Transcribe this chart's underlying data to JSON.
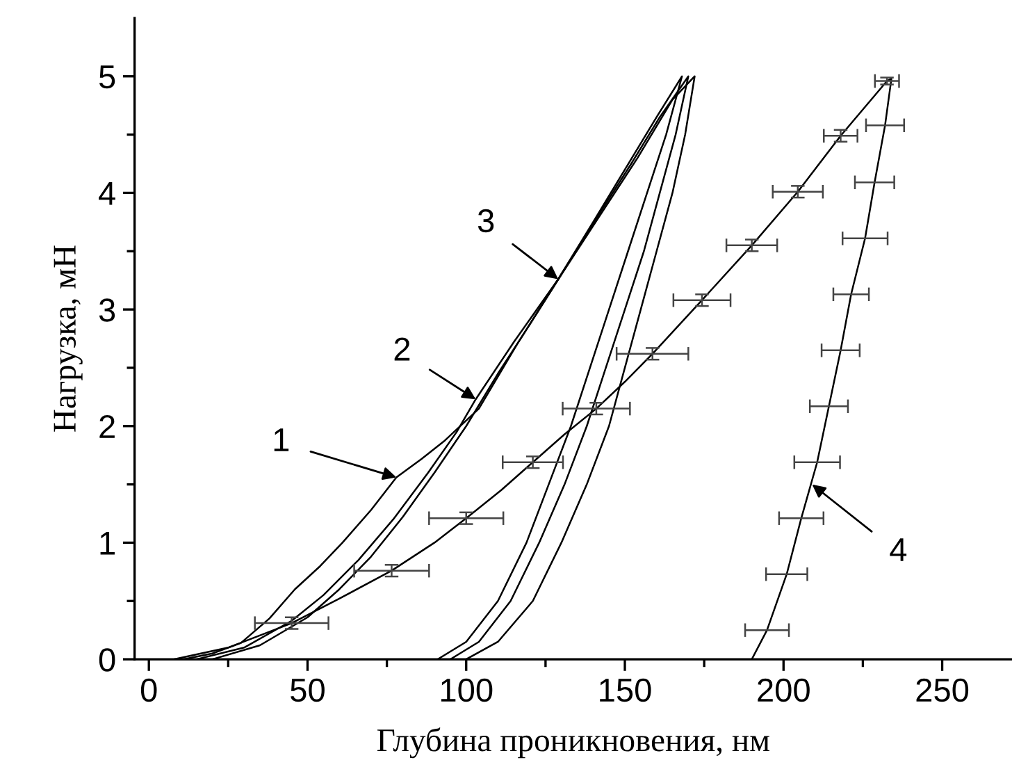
{
  "chart_data": {
    "type": "line",
    "xlabel": "Глубина проникновения, нм",
    "ylabel": "Нагрузка, мН",
    "xlim": [
      -4.5,
      272
    ],
    "xticks": [
      0,
      {
        "value": 25,
        "label": null
      },
      50,
      {
        "value": 75,
        "label": null
      },
      100,
      {
        "value": 125,
        "label": null
      },
      150,
      {
        "value": 175,
        "label": null
      },
      200,
      {
        "value": 225,
        "label": null
      },
      250
    ],
    "ylim": [
      0,
      5.5
    ],
    "yticks": [
      0,
      {
        "value": 0.5,
        "label": null
      },
      1,
      {
        "value": 1.5,
        "label": null
      },
      2,
      {
        "value": 2.5,
        "label": null
      },
      3,
      {
        "value": 3.5,
        "label": null
      },
      4,
      {
        "value": 4.5,
        "label": null
      },
      5
    ],
    "grid": false,
    "marker": "none",
    "line_style": "solid",
    "series": [
      {
        "color": "#000000",
        "x": [
          11,
          20,
          29,
          38,
          46,
          54,
          61,
          70,
          78,
          86,
          93,
          104,
          116,
          129,
          140,
          150,
          160,
          168,
          163,
          157,
          151,
          145,
          139,
          133,
          126,
          119,
          110,
          100,
          91
        ],
        "values": [
          0,
          0.05,
          0.14,
          0.35,
          0.6,
          0.8,
          1.0,
          1.28,
          1.56,
          1.72,
          1.87,
          2.15,
          2.7,
          3.26,
          3.75,
          4.2,
          4.65,
          5.0,
          4.5,
          4.0,
          3.5,
          3.0,
          2.5,
          2.0,
          1.5,
          1.0,
          0.5,
          0.15,
          0
        ]
      },
      {
        "color": "#000000",
        "x": [
          15,
          30,
          45,
          55,
          66,
          77,
          88,
          97,
          103,
          115,
          129,
          141,
          152,
          161,
          170,
          166,
          161,
          156,
          150,
          144,
          138,
          131,
          123,
          114,
          104,
          95
        ],
        "values": [
          0,
          0.1,
          0.33,
          0.55,
          0.85,
          1.2,
          1.6,
          1.95,
          2.23,
          2.72,
          3.26,
          3.78,
          4.25,
          4.65,
          5.0,
          4.5,
          4.0,
          3.5,
          3.0,
          2.5,
          2.0,
          1.5,
          1.0,
          0.5,
          0.15,
          0
        ]
      },
      {
        "color": "#000000",
        "x": [
          20,
          35,
          50,
          60,
          70,
          80,
          90,
          100,
          110,
          120,
          130,
          142,
          154,
          165,
          172,
          169,
          165,
          160,
          155,
          150,
          145,
          138,
          130,
          121,
          110,
          100
        ],
        "values": [
          0,
          0.12,
          0.36,
          0.6,
          0.88,
          1.22,
          1.6,
          2.0,
          2.45,
          2.87,
          3.3,
          3.8,
          4.3,
          4.8,
          5.0,
          4.5,
          4.0,
          3.5,
          3.0,
          2.5,
          2.0,
          1.5,
          1.0,
          0.5,
          0.15,
          0
        ]
      },
      {
        "color": "#000000",
        "x": [
          8,
          25,
          45,
          60,
          76.5,
          90,
          100,
          111,
          121,
          131,
          141,
          150,
          158.7,
          174.3,
          190,
          204.5,
          218,
          232.6,
          234,
          232,
          228.7,
          225.7,
          221.3,
          218,
          214.3,
          210.6,
          205.6,
          201,
          194.8,
          190
        ],
        "values": [
          0,
          0.1,
          0.31,
          0.52,
          0.76,
          1.0,
          1.21,
          1.45,
          1.69,
          1.93,
          2.15,
          2.38,
          2.62,
          3.08,
          3.55,
          4.01,
          4.49,
          4.96,
          4.98,
          4.58,
          4.09,
          3.61,
          3.13,
          2.65,
          2.17,
          1.69,
          1.21,
          0.73,
          0.25,
          0
        ],
        "xerrors": [
          null,
          null,
          11.6,
          null,
          11.8,
          null,
          11.7,
          null,
          9.5,
          null,
          10.6,
          null,
          11.3,
          9,
          8,
          7.9,
          5.3,
          3.8,
          null,
          6,
          6.2,
          7.1,
          5.6,
          6,
          6,
          7.2,
          7,
          6.5,
          6.9,
          null
        ],
        "errors": [
          null,
          null,
          0.05,
          null,
          0.05,
          null,
          0.05,
          null,
          0.05,
          null,
          0.05,
          null,
          0.05,
          0.05,
          0.05,
          0.05,
          0.05,
          0.03,
          null,
          null,
          null,
          null,
          null,
          null,
          null,
          null,
          null,
          null,
          null,
          null
        ]
      }
    ],
    "annotations": [
      {
        "text": "1",
        "x": 78,
        "y": 1.56
      },
      {
        "text": "2",
        "x": 103,
        "y": 2.23
      },
      {
        "text": "3",
        "x": 129,
        "y": 3.26
      },
      {
        "text": "4",
        "x": 209,
        "y": 1.5
      }
    ]
  }
}
